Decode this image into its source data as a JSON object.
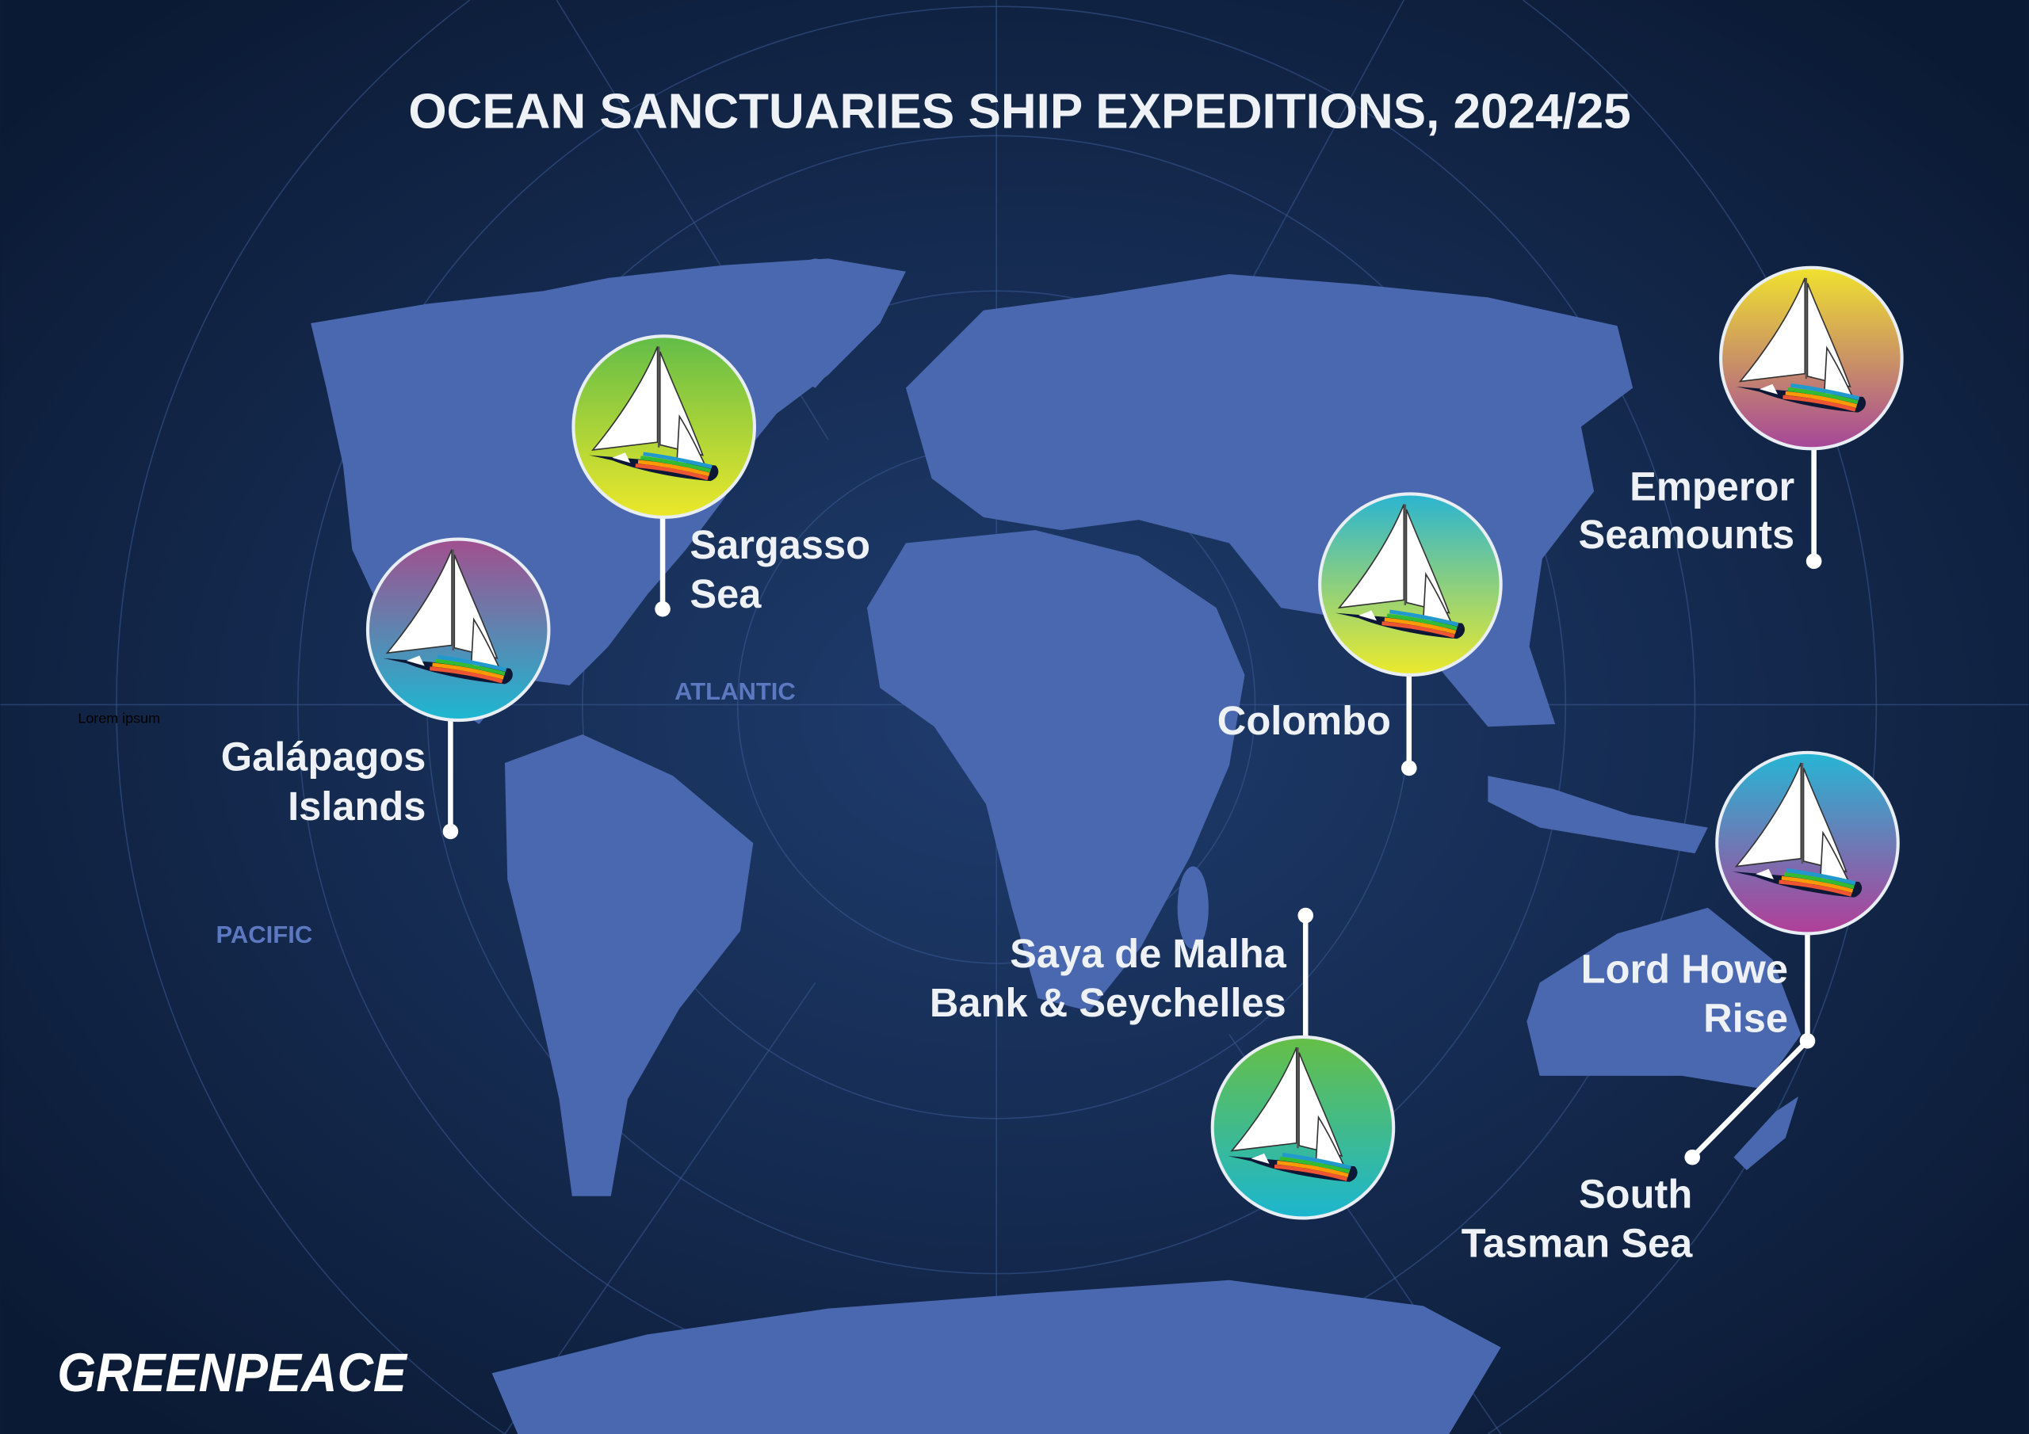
{
  "title": "OCEAN SANCTUARIES SHIP EXPEDITIONS, 2024/25",
  "oceans": {
    "atlantic": "ATLANTIC",
    "pacific": "PACIFIC"
  },
  "stray_text": "Lorem ipsum",
  "logo": "GREENPEACE",
  "colors": {
    "background": "#0c1b36",
    "land": "#4a68b0",
    "text": "#eef1f6",
    "ocean_label": "#5b78c0"
  },
  "locations": [
    {
      "name_line1": "Sargasso",
      "name_line2": "Sea",
      "badge_gradient": [
        "#62bd48",
        "#ece82a"
      ]
    },
    {
      "name_line1": "Galápagos",
      "name_line2": "Islands",
      "badge_gradient": [
        "#a24f8e",
        "#1cb8d2"
      ]
    },
    {
      "name_line1": "Colombo",
      "name_line2": "",
      "badge_gradient": [
        "#2ab4d2",
        "#ecea2c"
      ]
    },
    {
      "name_line1": "Emperor",
      "name_line2": "Seamounts",
      "badge_gradient": [
        "#f0e22e",
        "#a6469a"
      ]
    },
    {
      "name_line1": "Lord Howe",
      "name_line2": "Rise",
      "badge_gradient": [
        "#26b6d4",
        "#b23e98"
      ]
    },
    {
      "name_line1": "South",
      "name_line2": "Tasman Sea",
      "badge_gradient": []
    },
    {
      "name_line1": "Saya de Malha",
      "name_line2": "Bank & Seychelles",
      "badge_gradient": [
        "#66bf46",
        "#1cb6d0"
      ]
    }
  ],
  "icons": {
    "badge": "sailboat-rainbow-icon",
    "marker": "pin-dot-icon"
  }
}
